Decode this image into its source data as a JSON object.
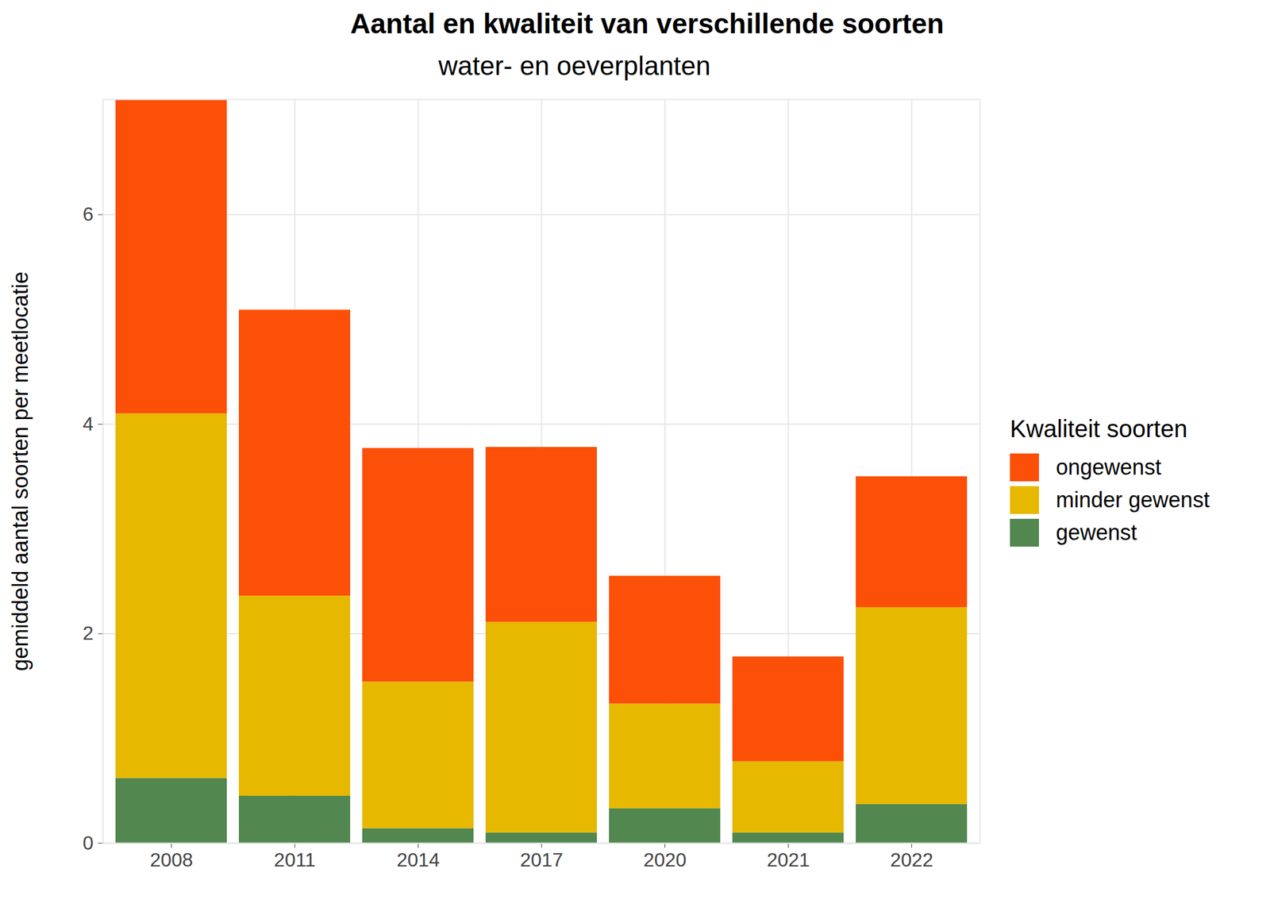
{
  "chart_data": {
    "type": "bar",
    "stacked": true,
    "title": "Aantal en kwaliteit van verschillende soorten",
    "subtitle": "water- en oeverplanten",
    "y_label": "gemiddeld aantal soorten per meetlocatie",
    "legend_title": "Kwaliteit soorten",
    "legend": "right",
    "grid": true,
    "categories": [
      "2008",
      "2011",
      "2014",
      "2017",
      "2020",
      "2021",
      "2022"
    ],
    "series": [
      {
        "name": "gewenst",
        "color": "#52874f",
        "values": [
          0.62,
          0.45,
          0.14,
          0.1,
          0.33,
          0.1,
          0.37
        ]
      },
      {
        "name": "minder gewenst",
        "color": "#e6b800",
        "values": [
          3.48,
          1.91,
          1.4,
          2.01,
          1.0,
          0.68,
          1.88
        ]
      },
      {
        "name": "ongewenst",
        "color": "#fc4f08",
        "values": [
          3.0,
          2.73,
          2.23,
          1.67,
          1.22,
          1.0,
          1.25
        ]
      }
    ],
    "ylim": [
      0,
      7.1
    ],
    "yticks": [
      0,
      2,
      4,
      6
    ]
  }
}
